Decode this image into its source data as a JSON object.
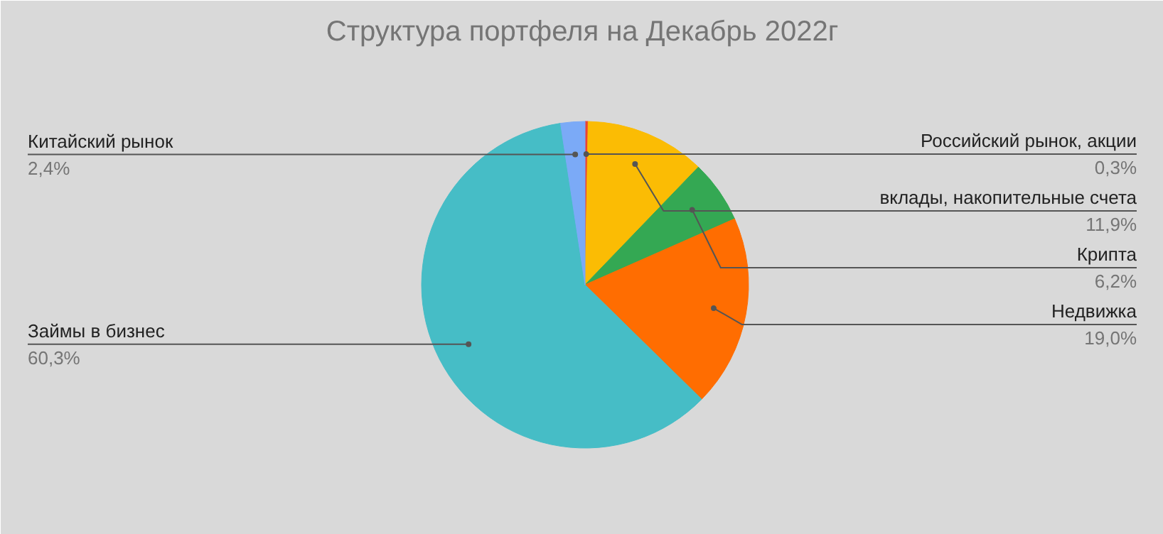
{
  "chart_data": {
    "type": "pie",
    "title": "Структура портфеля на Декабрь 2022г",
    "categories": [
      "Российский рынок, акции",
      "вклады, накопительные счета",
      "Крипта",
      "Недвижка",
      "Займы в бизнес",
      "Китайский рынок"
    ],
    "values": [
      0.3,
      11.9,
      6.2,
      19.0,
      60.3,
      2.4
    ],
    "value_labels": [
      "0,3%",
      "11,9%",
      "6,2%",
      "19,0%",
      "60,3%",
      "2,4%"
    ],
    "colors": [
      "#ea4335",
      "#fbbc04",
      "#34a853",
      "#ff6d01",
      "#46bdc6",
      "#7baaf7"
    ]
  }
}
